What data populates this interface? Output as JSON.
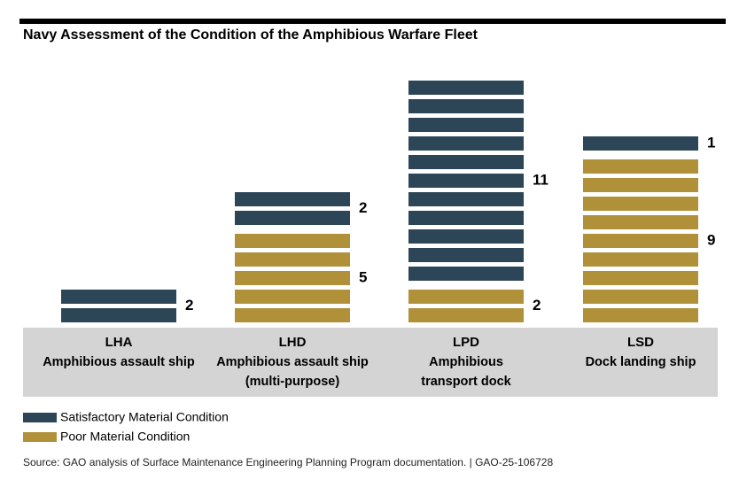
{
  "chart_data": {
    "type": "bar",
    "stacked": true,
    "title": "Navy Assessment of the Condition of the Amphibious Warfare Fleet",
    "categories": [
      {
        "code": "LHA",
        "name_lines": [
          "Amphibious assault ship"
        ]
      },
      {
        "code": "LHD",
        "name_lines": [
          "Amphibious assault ship",
          "(multi-purpose)"
        ]
      },
      {
        "code": "LPD",
        "name_lines": [
          "Amphibious",
          "transport dock"
        ]
      },
      {
        "code": "LSD",
        "name_lines": [
          "Dock landing ship"
        ]
      }
    ],
    "series": [
      {
        "name": "Satisfactory Material Condition",
        "color": "#2c4657",
        "values": [
          2,
          2,
          11,
          1
        ]
      },
      {
        "name": "Poor Material Condition",
        "color": "#b0913a",
        "values": [
          0,
          5,
          2,
          9
        ]
      }
    ],
    "legend_position": "bottom-left",
    "source": "Source: GAO analysis of Surface Maintenance Engineering Planning Program documentation.  |  GAO-25-106728"
  }
}
